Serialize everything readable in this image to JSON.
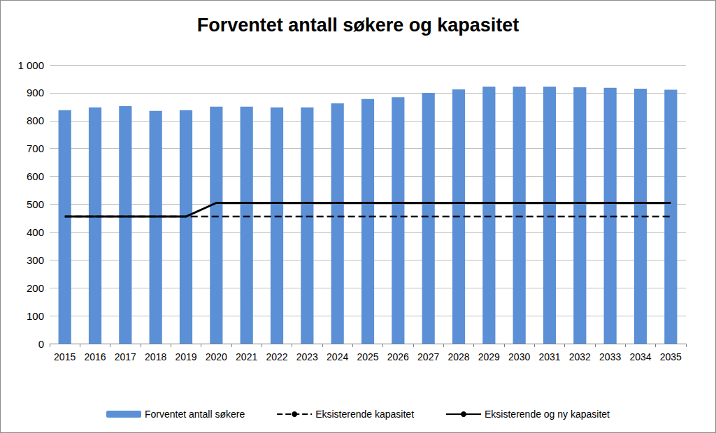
{
  "chart_data": {
    "type": "bar",
    "title": "Forventet antall søkere og kapasitet",
    "categories": [
      "2015",
      "2016",
      "2017",
      "2018",
      "2019",
      "2020",
      "2021",
      "2022",
      "2023",
      "2024",
      "2025",
      "2026",
      "2027",
      "2028",
      "2029",
      "2030",
      "2031",
      "2032",
      "2033",
      "2034",
      "2035"
    ],
    "series": [
      {
        "name": "Forventet antall søkere",
        "type": "bar",
        "color": "#5b8fd6",
        "values": [
          838,
          848,
          852,
          835,
          838,
          850,
          850,
          848,
          848,
          862,
          878,
          884,
          900,
          912,
          922,
          922,
          922,
          920,
          918,
          915,
          911
        ]
      },
      {
        "name": "Eksisterende kapasitet",
        "type": "line",
        "line_style": "dashed",
        "color": "#000000",
        "values": [
          456,
          456,
          456,
          456,
          456,
          456,
          456,
          456,
          456,
          456,
          456,
          456,
          456,
          456,
          456,
          456,
          456,
          456,
          456,
          456,
          456
        ]
      },
      {
        "name": "Eksisterende og ny kapasitet",
        "type": "line",
        "line_style": "solid",
        "color": "#000000",
        "values": [
          456,
          456,
          456,
          456,
          456,
          505,
          505,
          505,
          505,
          505,
          505,
          505,
          505,
          505,
          505,
          505,
          505,
          505,
          505,
          505,
          505
        ]
      }
    ],
    "ylim": [
      0,
      1000
    ],
    "yticks": [
      0,
      100,
      200,
      300,
      400,
      500,
      600,
      700,
      800,
      900,
      {
        "value": 1000,
        "label": "1 000"
      }
    ],
    "grid": true,
    "legend": "bottom"
  }
}
